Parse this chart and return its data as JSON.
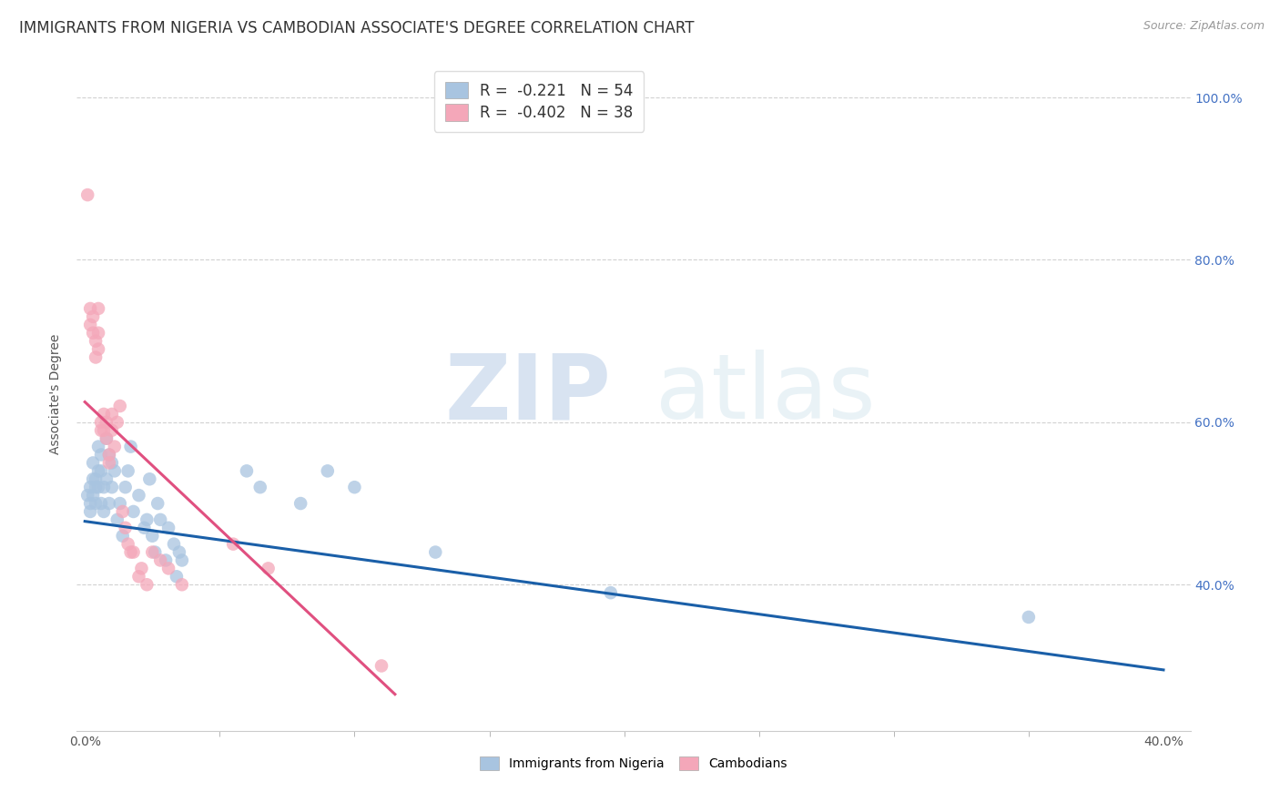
{
  "title": "IMMIGRANTS FROM NIGERIA VS CAMBODIAN ASSOCIATE'S DEGREE CORRELATION CHART",
  "source": "Source: ZipAtlas.com",
  "ylabel": "Associate's Degree",
  "right_yticks": [
    "100.0%",
    "80.0%",
    "60.0%",
    "40.0%"
  ],
  "right_ytick_vals": [
    1.0,
    0.8,
    0.6,
    0.4
  ],
  "legend_blue": "R =  -0.221   N = 54",
  "legend_pink": "R =  -0.402   N = 38",
  "legend_label_blue": "Immigrants from Nigeria",
  "legend_label_pink": "Cambodians",
  "blue_color": "#a8c4e0",
  "pink_color": "#f4a7b9",
  "blue_line_color": "#1a5fa8",
  "pink_line_color": "#e05080",
  "blue_scatter": [
    [
      0.001,
      0.51
    ],
    [
      0.002,
      0.52
    ],
    [
      0.002,
      0.5
    ],
    [
      0.002,
      0.49
    ],
    [
      0.003,
      0.55
    ],
    [
      0.003,
      0.53
    ],
    [
      0.003,
      0.51
    ],
    [
      0.004,
      0.53
    ],
    [
      0.004,
      0.52
    ],
    [
      0.004,
      0.5
    ],
    [
      0.005,
      0.57
    ],
    [
      0.005,
      0.54
    ],
    [
      0.005,
      0.52
    ],
    [
      0.006,
      0.56
    ],
    [
      0.006,
      0.5
    ],
    [
      0.006,
      0.54
    ],
    [
      0.007,
      0.49
    ],
    [
      0.007,
      0.52
    ],
    [
      0.008,
      0.58
    ],
    [
      0.008,
      0.53
    ],
    [
      0.009,
      0.56
    ],
    [
      0.009,
      0.5
    ],
    [
      0.01,
      0.55
    ],
    [
      0.01,
      0.52
    ],
    [
      0.011,
      0.54
    ],
    [
      0.012,
      0.48
    ],
    [
      0.013,
      0.5
    ],
    [
      0.014,
      0.46
    ],
    [
      0.015,
      0.52
    ],
    [
      0.016,
      0.54
    ],
    [
      0.017,
      0.57
    ],
    [
      0.018,
      0.49
    ],
    [
      0.02,
      0.51
    ],
    [
      0.022,
      0.47
    ],
    [
      0.023,
      0.48
    ],
    [
      0.024,
      0.53
    ],
    [
      0.025,
      0.46
    ],
    [
      0.026,
      0.44
    ],
    [
      0.027,
      0.5
    ],
    [
      0.028,
      0.48
    ],
    [
      0.03,
      0.43
    ],
    [
      0.031,
      0.47
    ],
    [
      0.033,
      0.45
    ],
    [
      0.034,
      0.41
    ],
    [
      0.035,
      0.44
    ],
    [
      0.036,
      0.43
    ],
    [
      0.06,
      0.54
    ],
    [
      0.065,
      0.52
    ],
    [
      0.08,
      0.5
    ],
    [
      0.09,
      0.54
    ],
    [
      0.1,
      0.52
    ],
    [
      0.13,
      0.44
    ],
    [
      0.195,
      0.39
    ],
    [
      0.35,
      0.36
    ]
  ],
  "pink_scatter": [
    [
      0.001,
      0.88
    ],
    [
      0.002,
      0.74
    ],
    [
      0.002,
      0.72
    ],
    [
      0.003,
      0.73
    ],
    [
      0.003,
      0.71
    ],
    [
      0.004,
      0.7
    ],
    [
      0.004,
      0.68
    ],
    [
      0.005,
      0.74
    ],
    [
      0.005,
      0.71
    ],
    [
      0.005,
      0.69
    ],
    [
      0.006,
      0.6
    ],
    [
      0.006,
      0.59
    ],
    [
      0.007,
      0.61
    ],
    [
      0.007,
      0.59
    ],
    [
      0.008,
      0.6
    ],
    [
      0.008,
      0.58
    ],
    [
      0.009,
      0.56
    ],
    [
      0.009,
      0.55
    ],
    [
      0.01,
      0.61
    ],
    [
      0.01,
      0.59
    ],
    [
      0.011,
      0.57
    ],
    [
      0.012,
      0.6
    ],
    [
      0.013,
      0.62
    ],
    [
      0.014,
      0.49
    ],
    [
      0.015,
      0.47
    ],
    [
      0.016,
      0.45
    ],
    [
      0.017,
      0.44
    ],
    [
      0.018,
      0.44
    ],
    [
      0.02,
      0.41
    ],
    [
      0.021,
      0.42
    ],
    [
      0.023,
      0.4
    ],
    [
      0.025,
      0.44
    ],
    [
      0.028,
      0.43
    ],
    [
      0.031,
      0.42
    ],
    [
      0.036,
      0.4
    ],
    [
      0.055,
      0.45
    ],
    [
      0.068,
      0.42
    ],
    [
      0.11,
      0.3
    ]
  ],
  "blue_line_x": [
    0.0,
    0.4
  ],
  "blue_line_y": [
    0.478,
    0.295
  ],
  "pink_line_x": [
    0.0,
    0.115
  ],
  "pink_line_y": [
    0.625,
    0.265
  ],
  "xlim": [
    -0.003,
    0.41
  ],
  "ylim": [
    0.22,
    1.05
  ],
  "xtick_minor": [
    0.05,
    0.1,
    0.15,
    0.2,
    0.25,
    0.3,
    0.35
  ],
  "watermark_zip": "ZIP",
  "watermark_atlas": "atlas",
  "background_color": "#ffffff",
  "grid_color": "#cccccc",
  "title_fontsize": 12,
  "axis_fontsize": 10
}
